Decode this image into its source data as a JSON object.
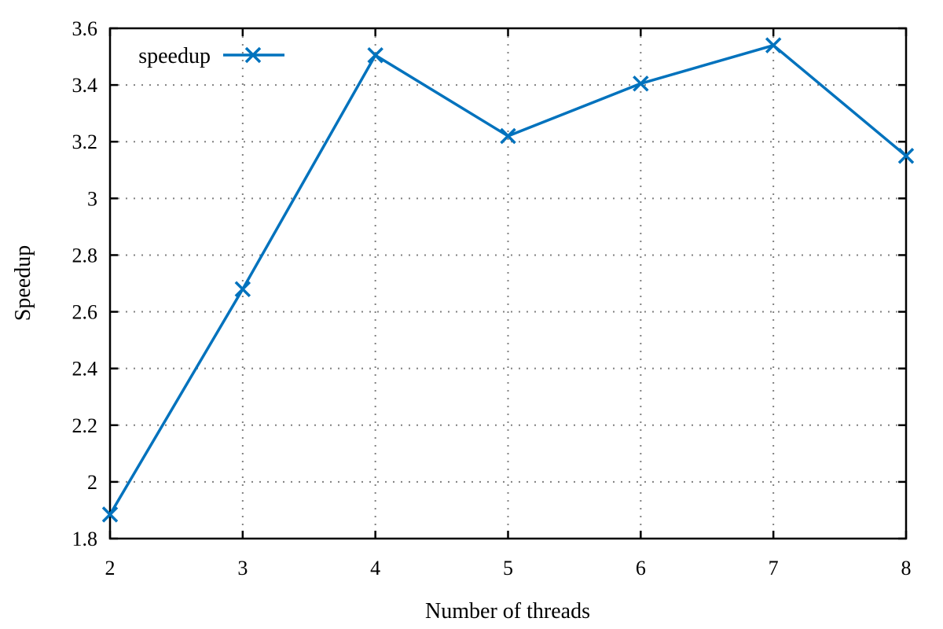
{
  "chart_data": {
    "type": "line",
    "xlabel": "Number of threads",
    "ylabel": "Speedup",
    "xlim": [
      2,
      8
    ],
    "ylim": [
      1.8,
      3.6
    ],
    "x_ticks": [
      "2",
      "3",
      "4",
      "5",
      "6",
      "7",
      "8"
    ],
    "y_ticks": [
      "1.8",
      "2",
      "2.2",
      "2.4",
      "2.6",
      "2.8",
      "3",
      "3.2",
      "3.4",
      "3.6"
    ],
    "grid": true,
    "legend_position": "top-left",
    "series": [
      {
        "name": "speedup",
        "color": "#0072bd",
        "marker": "x",
        "x": [
          2,
          3,
          4,
          5,
          6,
          7,
          8
        ],
        "y": [
          1.885,
          2.68,
          3.505,
          3.22,
          3.405,
          3.54,
          3.15
        ]
      }
    ]
  }
}
